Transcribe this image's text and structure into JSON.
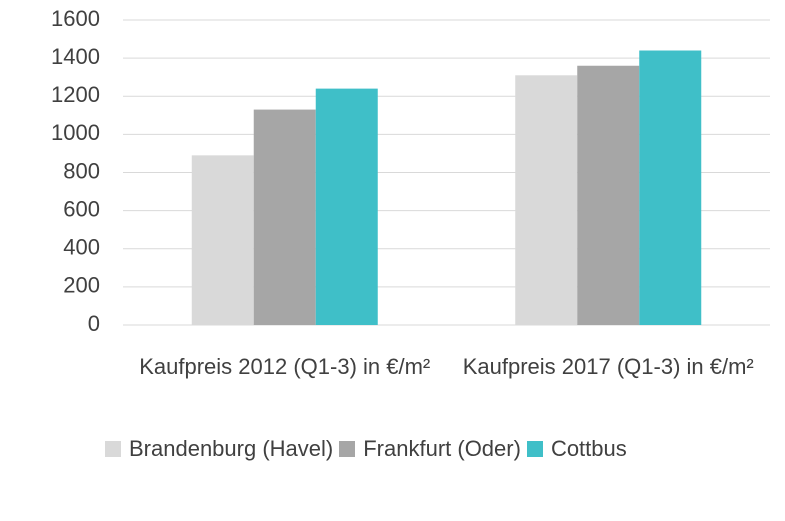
{
  "chart_data": {
    "type": "bar",
    "categories": [
      "Kaufpreis 2012 (Q1-3) in €/m²",
      "Kaufpreis 2017 (Q1-3) in €/m²"
    ],
    "series": [
      {
        "name": "Brandenburg (Havel)",
        "color": "#d9d9d9",
        "values": [
          890,
          1310
        ]
      },
      {
        "name": "Frankfurt (Oder)",
        "color": "#a6a6a6",
        "values": [
          1130,
          1360
        ]
      },
      {
        "name": "Cottbus",
        "color": "#3fbfc8",
        "values": [
          1240,
          1440
        ]
      }
    ],
    "ylim": [
      0,
      1600
    ],
    "yticks": [
      0,
      200,
      400,
      600,
      800,
      1000,
      1200,
      1400,
      1600
    ],
    "grid": true
  }
}
